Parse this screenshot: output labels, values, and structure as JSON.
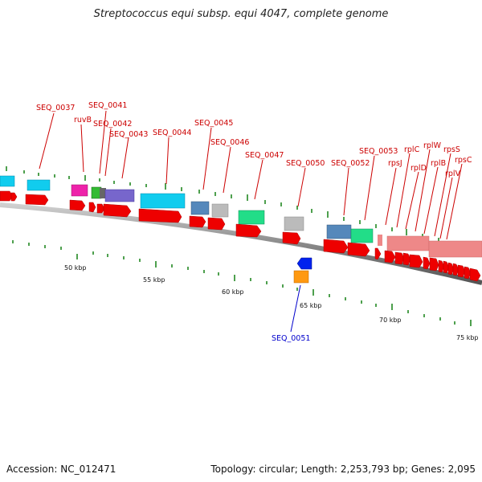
{
  "title": "Streptococcus equi subsp. equi 4047, complete genome",
  "footer": {
    "accession": "Accession: NC_012471",
    "stats": "Topology: circular; Length: 2,253,793 bp; Genes: 2,095"
  },
  "ruler_labels": [
    "50 kbp",
    "55 kbp",
    "60 kbp",
    "65 kbp",
    "70 kbp",
    "75 kbp"
  ],
  "feature_labels": [
    {
      "id": "f0037",
      "text": "SEQ_0037",
      "color": "#cc0000"
    },
    {
      "id": "f0041",
      "text": "SEQ_0041",
      "color": "#cc0000"
    },
    {
      "id": "fruvb",
      "text": "ruvB",
      "color": "#cc0000"
    },
    {
      "id": "f0042",
      "text": "SEQ_0042",
      "color": "#cc0000"
    },
    {
      "id": "f0043",
      "text": "SEQ_0043",
      "color": "#cc0000"
    },
    {
      "id": "f0044",
      "text": "SEQ_0044",
      "color": "#cc0000"
    },
    {
      "id": "f0045",
      "text": "SEQ_0045",
      "color": "#cc0000"
    },
    {
      "id": "f0046",
      "text": "SEQ_0046",
      "color": "#cc0000"
    },
    {
      "id": "f0047",
      "text": "SEQ_0047",
      "color": "#cc0000"
    },
    {
      "id": "f0050",
      "text": "SEQ_0050",
      "color": "#cc0000"
    },
    {
      "id": "f0052",
      "text": "SEQ_0052",
      "color": "#cc0000"
    },
    {
      "id": "f0053",
      "text": "SEQ_0053",
      "color": "#cc0000"
    },
    {
      "id": "frpsj",
      "text": "rpsJ",
      "color": "#cc0000"
    },
    {
      "id": "frplc",
      "text": "rplC",
      "color": "#cc0000"
    },
    {
      "id": "frpld",
      "text": "rplD",
      "color": "#cc0000"
    },
    {
      "id": "frplw",
      "text": "rplW",
      "color": "#cc0000"
    },
    {
      "id": "frplb",
      "text": "rplB",
      "color": "#cc0000"
    },
    {
      "id": "frpss",
      "text": "rpsS",
      "color": "#cc0000"
    },
    {
      "id": "frpsc",
      "text": "rpsC",
      "color": "#cc0000"
    },
    {
      "id": "frplv",
      "text": "rplV",
      "color": "#cc0000"
    },
    {
      "id": "f0051",
      "text": "SEQ_0051",
      "color": "#0000cc"
    }
  ],
  "colors": {
    "cds_forward": "#ee0000",
    "backbone": "#999999",
    "tick": "#228822",
    "cog_cyan": "#11ccee",
    "cog_magenta": "#ee22aa",
    "cog_green": "#33bb33",
    "cog_purple": "#7766cc",
    "cog_grey": "#bbbbbb",
    "cog_steelblue": "#5588bb",
    "cog_springgreen": "#22dd88",
    "cog_pink": "#ee8888",
    "reverse_blue": "#0022ee",
    "reverse_orange": "#ff9911"
  }
}
